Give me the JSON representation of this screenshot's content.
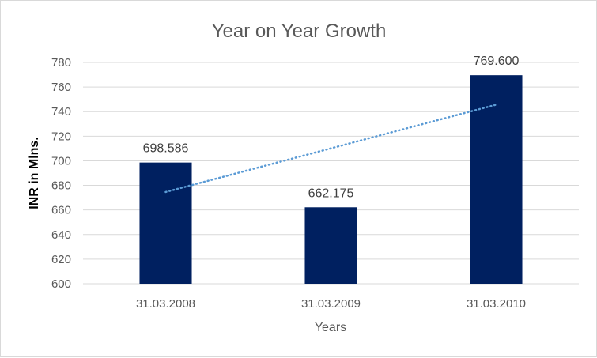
{
  "chart_data": {
    "type": "bar",
    "title": "Year on Year Growth",
    "xlabel": "Years",
    "ylabel": "INR in Mlns.",
    "categories": [
      "31.03.2008",
      "31.03.2009",
      "31.03.2010"
    ],
    "values": [
      698.586,
      662.175,
      769.6
    ],
    "data_labels": [
      "698.586",
      "662.175",
      "769.600"
    ],
    "ylim": [
      600,
      780
    ],
    "yticks": [
      600,
      620,
      640,
      660,
      680,
      700,
      720,
      740,
      760,
      780
    ],
    "grid": true,
    "trendline": {
      "type": "linear",
      "style": "dotted",
      "color": "#5b9bd5"
    },
    "colors": {
      "bar": "#002060",
      "grid": "#d9d9d9",
      "text": "#595959"
    }
  }
}
